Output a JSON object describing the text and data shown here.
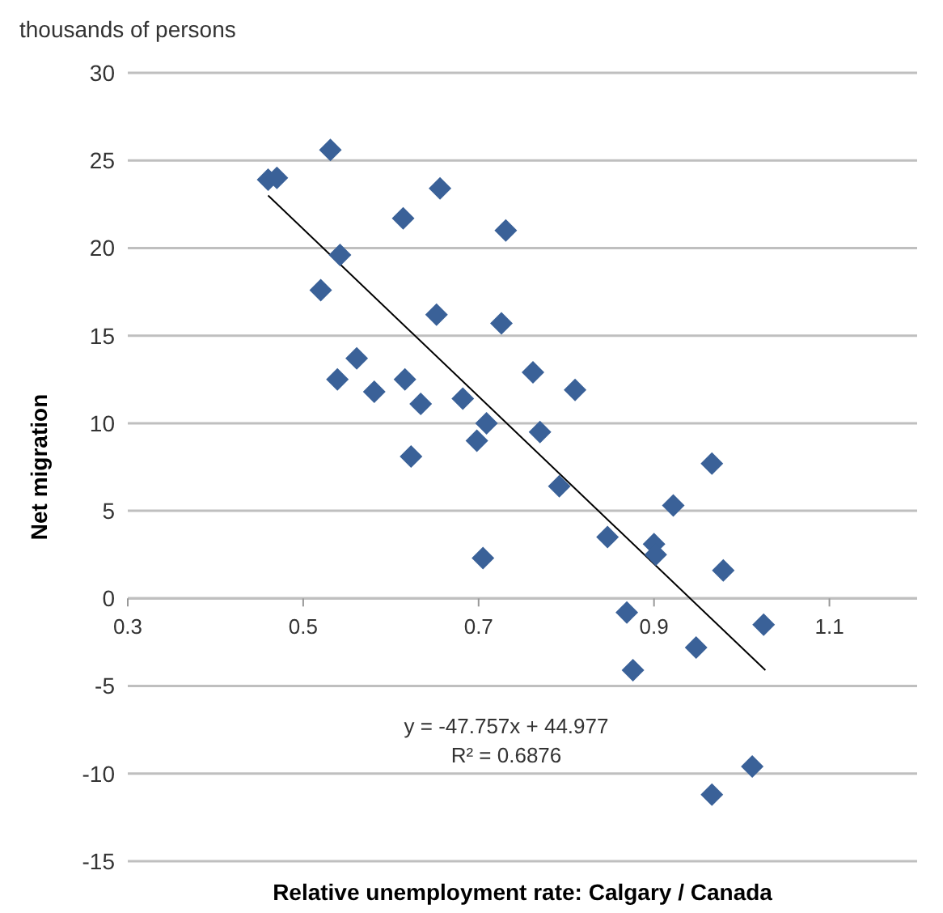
{
  "chart_data": {
    "type": "scatter",
    "xlabel": "Relative unemployment rate: Calgary / Canada",
    "ylabel": "Net migration",
    "annotations": [
      "thousands of persons",
      "y = -47.757x + 44.977",
      "R² = 0.6876"
    ],
    "xlim": [
      0.3,
      1.2
    ],
    "xticks": [
      0.3,
      0.5,
      0.7,
      0.9,
      1.1
    ],
    "ylim": [
      -15,
      30
    ],
    "yticks": [
      -15,
      -10,
      -5,
      0,
      5,
      10,
      15,
      20,
      25,
      30
    ],
    "grid": "y",
    "marker": "diamond",
    "series": [
      {
        "color": "#3a6198",
        "x": [
          0.46,
          0.47,
          0.531,
          0.542,
          0.52,
          0.539,
          0.561,
          0.581,
          0.614,
          0.616,
          0.634,
          0.623,
          0.656,
          0.652,
          0.682,
          0.709,
          0.698,
          0.705,
          0.731,
          0.726,
          0.762,
          0.77,
          0.792,
          0.81,
          0.847,
          0.869,
          0.876,
          0.9,
          0.902,
          0.922,
          0.948,
          0.966,
          0.979,
          0.966,
          1.012,
          1.025
        ],
        "values": [
          23.9,
          24,
          25.6,
          19.6,
          17.6,
          12.5,
          13.7,
          11.8,
          21.7,
          12.5,
          11.1,
          8.1,
          23.4,
          16.2,
          11.4,
          10,
          9,
          2.3,
          21,
          15.7,
          12.9,
          9.5,
          6.4,
          11.9,
          3.5,
          -0.8,
          -4.1,
          3.1,
          2.5,
          5.3,
          -2.8,
          7.7,
          1.6,
          -11.2,
          -9.6,
          -1.5
        ]
      },
      {
        "type": "line",
        "color": "#000000",
        "marker": "none",
        "x": [
          0.46,
          1.027
        ],
        "values": [
          23.0,
          -4.1
        ]
      }
    ]
  }
}
